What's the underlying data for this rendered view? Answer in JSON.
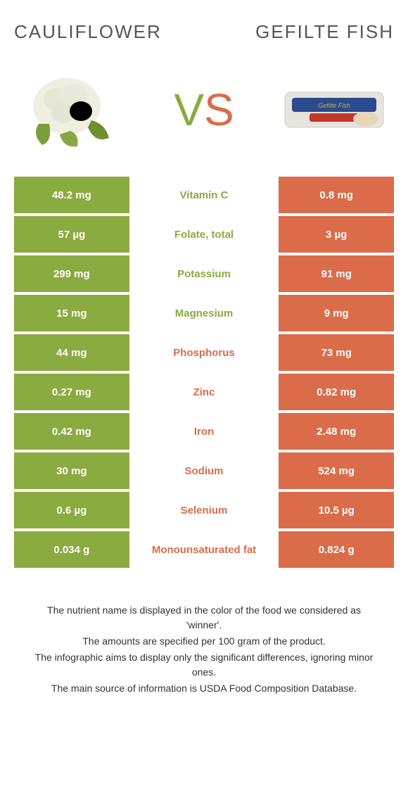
{
  "header": {
    "left_title": "Cauliflower",
    "right_title": "Gefilte fish"
  },
  "vs": {
    "v": "V",
    "s": "S"
  },
  "colors": {
    "green": "#8aab3f",
    "orange": "#da6c4a",
    "text_green": "#8aab3f",
    "text_orange": "#da6c4a"
  },
  "rows": [
    {
      "left": "48.2 mg",
      "label": "Vitamin C",
      "right": "0.8 mg",
      "winner": "green"
    },
    {
      "left": "57 µg",
      "label": "Folate, total",
      "right": "3 µg",
      "winner": "green"
    },
    {
      "left": "299 mg",
      "label": "Potassium",
      "right": "91 mg",
      "winner": "green"
    },
    {
      "left": "15 mg",
      "label": "Magnesium",
      "right": "9 mg",
      "winner": "green"
    },
    {
      "left": "44 mg",
      "label": "Phosphorus",
      "right": "73 mg",
      "winner": "orange"
    },
    {
      "left": "0.27 mg",
      "label": "Zinc",
      "right": "0.82 mg",
      "winner": "orange"
    },
    {
      "left": "0.42 mg",
      "label": "Iron",
      "right": "2.48 mg",
      "winner": "orange"
    },
    {
      "left": "30 mg",
      "label": "Sodium",
      "right": "524 mg",
      "winner": "orange"
    },
    {
      "left": "0.6 µg",
      "label": "Selenium",
      "right": "10.5 µg",
      "winner": "orange"
    },
    {
      "left": "0.034 g",
      "label": "Monounsaturated fat",
      "right": "0.824 g",
      "winner": "orange"
    }
  ],
  "footer": {
    "line1": "The nutrient name is displayed in the color of the food we considered as 'winner'.",
    "line2": "The amounts are specified per 100 gram of the product.",
    "line3": "The infographic aims to display only the significant differences, ignoring minor ones.",
    "line4": "The main source of information is USDA Food Composition Database."
  }
}
